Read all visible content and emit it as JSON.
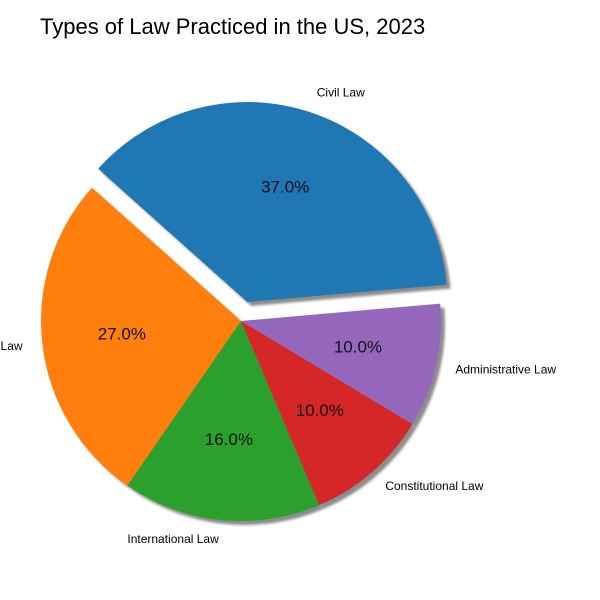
{
  "chart_data": {
    "type": "pie",
    "title": "Types of Law Practiced in the US, 2023",
    "categories": [
      "Civil Law",
      "Criminal Law",
      "International Law",
      "Constitutional Law",
      "Administrative Law"
    ],
    "values": [
      37.0,
      27.0,
      16.0,
      10.0,
      10.0
    ],
    "value_labels": [
      "37.0%",
      "27.0%",
      "16.0%",
      "10.0%",
      "10.0%"
    ],
    "colors": [
      "#1f77b4",
      "#ff7f0e",
      "#2ca02c",
      "#d62728",
      "#9467bd"
    ],
    "exploded": [
      true,
      false,
      false,
      false,
      false
    ],
    "shadow": true,
    "legend": "none"
  }
}
